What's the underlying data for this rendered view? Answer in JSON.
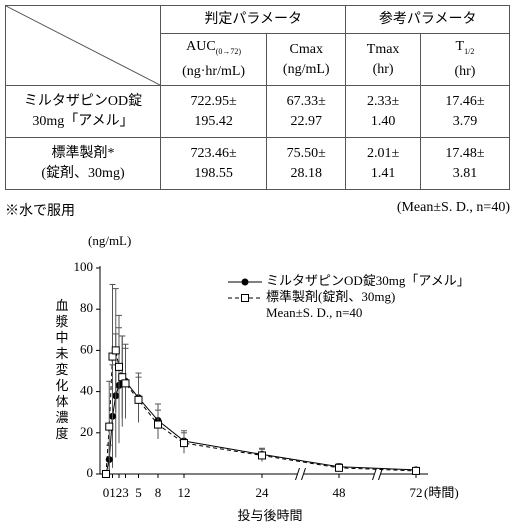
{
  "table": {
    "groups": [
      "判定パラメータ",
      "参考パラメータ"
    ],
    "columns": [
      {
        "label": "AUC",
        "sub": "(0→72)",
        "unit": "(ng·hr/mL)"
      },
      {
        "label": "Cmax",
        "unit": "(ng/mL)"
      },
      {
        "label": "Tmax",
        "unit": "(hr)"
      },
      {
        "label": "T",
        "sub": "1/2",
        "unit": "(hr)"
      }
    ],
    "rows": [
      {
        "name": [
          "ミルタザピンOD錠",
          "30mg「アメル」"
        ],
        "cells": [
          [
            "722.95±",
            "195.42"
          ],
          [
            "67.33±",
            "22.97"
          ],
          [
            "2.33±",
            "1.40"
          ],
          [
            "17.46±",
            "3.79"
          ]
        ]
      },
      {
        "name": [
          "標準製剤*",
          "(錠剤、30mg)"
        ],
        "cells": [
          [
            "723.46±",
            "198.55"
          ],
          [
            "75.50±",
            "28.18"
          ],
          [
            "2.01±",
            "1.41"
          ],
          [
            "17.48±",
            "3.81"
          ]
        ]
      }
    ],
    "footnote": "※水で服用",
    "stats": "(Mean±S. D.,  n=40)"
  },
  "chart_data": {
    "type": "line",
    "y_unit": "(ng/mL)",
    "ylabel": "血漿中未変化体濃度",
    "xlabel": "投与後時間",
    "x_unit": "(時間)",
    "note": "Mean±S. D., n=40",
    "x": [
      0,
      0.5,
      1,
      1.5,
      2,
      2.5,
      3,
      5,
      8,
      12,
      24,
      48,
      72
    ],
    "series": [
      {
        "name": "ミルタザピンOD錠30mg「アメル」",
        "color": "#000000",
        "marker": "circle",
        "dash": false,
        "values": [
          0,
          7,
          28,
          38,
          43,
          45,
          45,
          37,
          26,
          16,
          9.5,
          3.5,
          2
        ],
        "errors": [
          0,
          7,
          25,
          30,
          28,
          22,
          18,
          12,
          8,
          5,
          3,
          1.5,
          1
        ]
      },
      {
        "name": "標準製剤(錠剤、30mg)",
        "color": "#000000",
        "marker": "square",
        "dash": true,
        "values": [
          0,
          23,
          57,
          60,
          52,
          47,
          44,
          36,
          24,
          15,
          9,
          3,
          1.5
        ],
        "errors": [
          0,
          22,
          35,
          30,
          25,
          20,
          17,
          11,
          7,
          5,
          3,
          1.5,
          1
        ]
      }
    ],
    "xlim": [
      0,
      72
    ],
    "xticks": [
      0,
      1,
      2,
      3,
      5,
      8,
      12,
      24,
      48,
      72
    ],
    "axis_breaks": [
      [
        24,
        48
      ],
      [
        48,
        72
      ]
    ],
    "ylim": [
      0,
      100
    ],
    "yticks": [
      0,
      20,
      40,
      60,
      80,
      100
    ]
  }
}
